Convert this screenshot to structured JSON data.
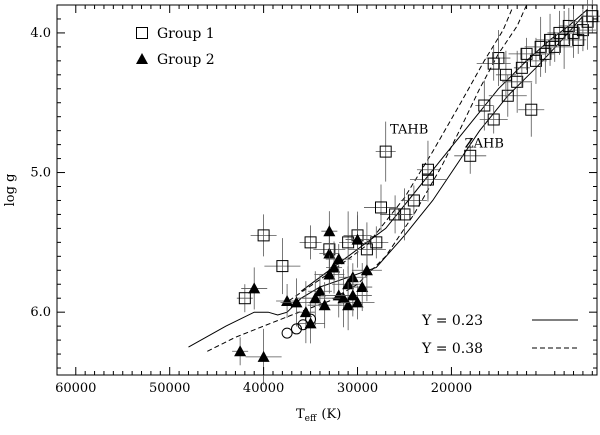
{
  "chart_data": {
    "type": "scatter",
    "xlabel": "T",
    "xlabel_sub": "eff",
    "xlabel_unit": "(K)",
    "ylabel": "log g",
    "x_reversed": true,
    "y_reversed": true,
    "xlim": [
      62000,
      4500
    ],
    "ylim": [
      3.8,
      6.45
    ],
    "x_ticks": [
      60000,
      50000,
      40000,
      30000,
      20000
    ],
    "x_tick_labels": [
      "60000",
      "50000",
      "40000",
      "30000",
      "20000"
    ],
    "y_ticks": [
      4.0,
      5.0,
      6.0
    ],
    "y_tick_labels": [
      "4.0",
      "5.0",
      "6.0"
    ],
    "grid": false,
    "legend_position": "top-left",
    "series": [
      {
        "name": "Group 1",
        "marker": "open-square",
        "points": [
          [
            42000,
            5.9
          ],
          [
            40000,
            5.45
          ],
          [
            38000,
            5.67
          ],
          [
            35000,
            5.5
          ],
          [
            33000,
            5.55
          ],
          [
            31000,
            5.5
          ],
          [
            30000,
            5.45
          ],
          [
            29000,
            5.55
          ],
          [
            28000,
            5.5
          ],
          [
            27500,
            5.25
          ],
          [
            27000,
            4.85
          ],
          [
            26000,
            5.3
          ],
          [
            25000,
            5.3
          ],
          [
            24000,
            5.2
          ],
          [
            22500,
            5.05
          ],
          [
            22500,
            4.98
          ],
          [
            18000,
            4.88
          ],
          [
            16500,
            4.52
          ],
          [
            15500,
            4.62
          ],
          [
            14000,
            4.45
          ],
          [
            15000,
            4.18
          ],
          [
            15500,
            4.22
          ],
          [
            14200,
            4.3
          ],
          [
            13000,
            4.35
          ],
          [
            12500,
            4.25
          ],
          [
            11500,
            4.55
          ],
          [
            12000,
            4.15
          ],
          [
            11000,
            4.2
          ],
          [
            10500,
            4.1
          ],
          [
            10000,
            4.15
          ],
          [
            9500,
            4.05
          ],
          [
            9000,
            4.1
          ],
          [
            8500,
            4.0
          ],
          [
            8000,
            4.05
          ],
          [
            7500,
            3.95
          ],
          [
            7000,
            4.0
          ],
          [
            6500,
            4.05
          ],
          [
            6000,
            3.98
          ],
          [
            5500,
            3.92
          ],
          [
            5000,
            3.88
          ]
        ]
      },
      {
        "name": "Group 2",
        "marker": "filled-triangle",
        "points": [
          [
            42500,
            6.28
          ],
          [
            41000,
            5.83
          ],
          [
            40000,
            6.32
          ],
          [
            37500,
            5.92
          ],
          [
            36500,
            5.93
          ],
          [
            35500,
            6.0
          ],
          [
            35000,
            6.08
          ],
          [
            34500,
            5.9
          ],
          [
            34000,
            5.85
          ],
          [
            33500,
            5.95
          ],
          [
            33000,
            5.58
          ],
          [
            33000,
            5.73
          ],
          [
            32500,
            5.68
          ],
          [
            32000,
            5.62
          ],
          [
            32000,
            5.88
          ],
          [
            31500,
            5.9
          ],
          [
            31000,
            5.8
          ],
          [
            31000,
            5.95
          ],
          [
            30500,
            5.75
          ],
          [
            30500,
            5.88
          ],
          [
            30000,
            5.48
          ],
          [
            30000,
            5.93
          ],
          [
            29500,
            5.82
          ],
          [
            29000,
            5.7
          ],
          [
            33000,
            5.42
          ]
        ]
      },
      {
        "marker": "open-circle",
        "points": [
          [
            37500,
            6.15
          ],
          [
            36500,
            6.12
          ],
          [
            35800,
            6.09
          ],
          [
            35000,
            6.05
          ]
        ]
      }
    ],
    "curves": [
      {
        "name": "Y = 0.23",
        "style": "solid",
        "points": [
          [
            48000,
            6.25
          ],
          [
            44000,
            6.1
          ],
          [
            41000,
            6.0
          ],
          [
            39500,
            6.0
          ],
          [
            38500,
            6.02
          ],
          [
            37500,
            6.0
          ],
          [
            36000,
            5.9
          ],
          [
            34000,
            5.82
          ],
          [
            31000,
            5.75
          ],
          [
            28000,
            5.68
          ],
          [
            25000,
            5.45
          ],
          [
            22000,
            5.2
          ],
          [
            19000,
            4.9
          ],
          [
            17000,
            4.7
          ],
          [
            14000,
            4.45
          ],
          [
            11000,
            4.25
          ],
          [
            8500,
            4.07
          ],
          [
            6000,
            3.88
          ]
        ]
      },
      {
        "name": "TAHB",
        "style": "solid",
        "points": [
          [
            36000,
            5.85
          ],
          [
            31000,
            5.6
          ],
          [
            27000,
            5.4
          ],
          [
            24000,
            5.15
          ],
          [
            21000,
            4.9
          ],
          [
            18000,
            4.65
          ],
          [
            15000,
            4.4
          ],
          [
            12000,
            4.2
          ],
          [
            9500,
            4.05
          ],
          [
            7500,
            3.95
          ],
          [
            5500,
            3.83
          ]
        ]
      },
      {
        "name": "Y = 0.38",
        "style": "dashed",
        "points": [
          [
            46000,
            6.28
          ],
          [
            43000,
            6.18
          ],
          [
            40000,
            6.1
          ],
          [
            37000,
            6.02
          ],
          [
            33000,
            5.92
          ],
          [
            30000,
            5.8
          ],
          [
            27000,
            5.6
          ],
          [
            24000,
            5.3
          ],
          [
            21000,
            4.95
          ],
          [
            19000,
            4.68
          ],
          [
            17000,
            4.4
          ],
          [
            15000,
            4.15
          ],
          [
            13000,
            3.95
          ],
          [
            12000,
            3.8
          ]
        ]
      },
      {
        "style": "dashed",
        "points": [
          [
            38000,
            5.95
          ],
          [
            33000,
            5.72
          ],
          [
            29000,
            5.52
          ],
          [
            25000,
            5.18
          ],
          [
            22000,
            4.85
          ],
          [
            19000,
            4.5
          ],
          [
            16500,
            4.2
          ],
          [
            14500,
            3.98
          ],
          [
            13500,
            3.82
          ]
        ]
      }
    ],
    "annotations": [
      {
        "text": "TAHB",
        "x": 24500,
        "y": 4.72
      },
      {
        "text": "ZAHB",
        "x": 16500,
        "y": 4.82
      }
    ],
    "legend": [
      {
        "text": "Group 1",
        "marker": "open-square"
      },
      {
        "text": "Group 2",
        "marker": "filled-triangle"
      }
    ],
    "line_legend": [
      {
        "text": "Y = 0.23",
        "style": "solid"
      },
      {
        "text": "Y = 0.38",
        "style": "dashed"
      }
    ]
  }
}
